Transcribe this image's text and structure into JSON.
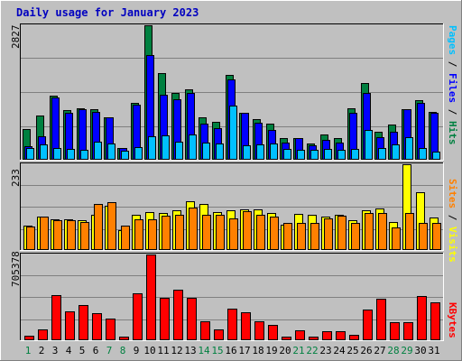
{
  "title": "Daily usage for January 2023",
  "colors": {
    "hits": "#008040",
    "files": "#0000ff",
    "pages": "#00c0ff",
    "visits": "#ffff00",
    "sites": "#ff8000",
    "kbytes": "#ff0000",
    "weekday_label": "#000000",
    "weekend_label": "#008040",
    "title": "#0000c0",
    "panel_bg": "#c0c0c0",
    "grid": "#808080"
  },
  "legend": {
    "top": {
      "pages": "Pages",
      "files": "Files",
      "hits": "Hits",
      "sep": " / "
    },
    "mid": {
      "sites": "Sites",
      "visits": "Visits",
      "sep": " / "
    },
    "bottom": {
      "kbytes": "KBytes"
    }
  },
  "chart_data": [
    {
      "type": "bar",
      "title": "Daily usage for January 2023",
      "categories": [
        "1",
        "2",
        "3",
        "4",
        "5",
        "6",
        "7",
        "8",
        "9",
        "10",
        "11",
        "12",
        "13",
        "14",
        "15",
        "16",
        "17",
        "18",
        "19",
        "20",
        "21",
        "22",
        "23",
        "24",
        "25",
        "26",
        "27",
        "28",
        "29",
        "30",
        "31"
      ],
      "weekend_days": [
        1,
        7,
        8,
        14,
        15,
        21,
        22,
        28,
        29
      ],
      "ymax_label": "2827",
      "ylim": [
        0,
        2827
      ],
      "grid": true,
      "series": [
        {
          "name": "Hits",
          "values": [
            630,
            910,
            1340,
            1030,
            1070,
            1060,
            880,
            230,
            1180,
            2827,
            1810,
            1400,
            1470,
            870,
            790,
            1780,
            980,
            850,
            740,
            440,
            430,
            320,
            520,
            440,
            1070,
            1610,
            570,
            730,
            1050,
            1240,
            1000
          ]
        },
        {
          "name": "Files",
          "values": [
            260,
            480,
            1290,
            970,
            1050,
            1000,
            870,
            230,
            1150,
            2200,
            1360,
            1270,
            1390,
            750,
            640,
            1690,
            970,
            770,
            620,
            350,
            440,
            290,
            400,
            340,
            970,
            1400,
            450,
            580,
            1050,
            1180,
            980
          ]
        },
        {
          "name": "Pages",
          "values": [
            220,
            300,
            220,
            210,
            200,
            360,
            320,
            170,
            240,
            480,
            490,
            360,
            510,
            350,
            330,
            1130,
            280,
            300,
            330,
            210,
            200,
            200,
            210,
            200,
            210,
            620,
            220,
            310,
            450,
            220,
            160
          ]
        }
      ]
    },
    {
      "type": "bar",
      "ymax_label": "233",
      "ylim": [
        0,
        233
      ],
      "grid": true,
      "series": [
        {
          "name": "Visits",
          "values": [
            64,
            90,
            81,
            82,
            80,
            95,
            119,
            51,
            95,
            101,
            99,
            106,
            131,
            125,
            101,
            107,
            109,
            108,
            100,
            68,
            97,
            93,
            90,
            95,
            80,
            107,
            111,
            74,
            233,
            155,
            86
          ]
        },
        {
          "name": "Sites",
          "values": [
            63,
            88,
            79,
            80,
            75,
            124,
            130,
            64,
            81,
            82,
            92,
            95,
            115,
            94,
            95,
            85,
            103,
            93,
            90,
            71,
            73,
            72,
            85,
            91,
            72,
            100,
            98,
            60,
            100,
            72,
            71
          ]
        }
      ]
    },
    {
      "type": "bar",
      "ymax_label": "705378",
      "ylim": [
        0,
        705378
      ],
      "grid": true,
      "series": [
        {
          "name": "KBytes",
          "values": [
            30000,
            85000,
            370000,
            230000,
            285000,
            215000,
            175000,
            25000,
            380000,
            705378,
            345000,
            415000,
            345000,
            150000,
            85000,
            255000,
            225000,
            150000,
            120000,
            20000,
            75000,
            20000,
            65000,
            65000,
            40000,
            245000,
            335000,
            140000,
            140000,
            360000,
            305000
          ]
        }
      ]
    }
  ]
}
